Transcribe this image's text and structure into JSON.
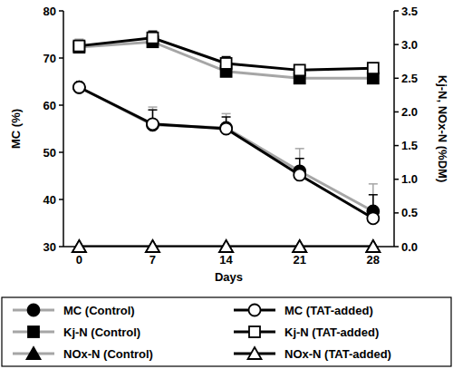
{
  "chart_data": {
    "type": "line",
    "x_label": "Days",
    "y_label": "MC (%)",
    "y2_label": "Kj-N, NOx-N (%DM)",
    "x": [
      0,
      7,
      14,
      21,
      28
    ],
    "xlim": [
      -1.5,
      30
    ],
    "xticks": [
      0,
      7,
      14,
      21,
      28
    ],
    "ylim": [
      30,
      80
    ],
    "yticks": [
      30,
      40,
      50,
      60,
      70,
      80
    ],
    "y2lim": [
      0,
      3.5
    ],
    "y2ticks": [
      {
        "value": 0,
        "label": "0.0"
      },
      0.5,
      {
        "value": 1,
        "label": "1.0"
      },
      1.5,
      {
        "value": 2,
        "label": "2.0"
      },
      2.5,
      {
        "value": 3,
        "label": "3.0"
      },
      3.5
    ],
    "legend": "bottom",
    "series": [
      {
        "name": "MC (Control)",
        "color": "#a6a6a6",
        "marker": "filled-circle",
        "values": [
          63.8,
          55.8,
          55.2,
          46.0,
          37.5
        ],
        "errors": [
          0.5,
          3.8,
          3.0,
          4.8,
          5.8
        ]
      },
      {
        "name": "MC (TAT-added)",
        "color": "#000000",
        "marker": "open-circle",
        "values": [
          63.8,
          56.0,
          55.0,
          45.2,
          36.0
        ],
        "errors": [
          0.5,
          3.0,
          2.5,
          3.5,
          5.0
        ]
      },
      {
        "name": "Kj-N (Control)",
        "color": "#a6a6a6",
        "marker": "filled-square",
        "axis": "y2",
        "values": [
          2.96,
          3.04,
          2.6,
          2.5,
          2.5
        ],
        "errors": [
          0.12,
          0.12,
          0.1,
          0.06,
          0.06
        ]
      },
      {
        "name": "Kj-N (TAT-added)",
        "color": "#000000",
        "marker": "open-square",
        "axis": "y2",
        "values": [
          2.98,
          3.1,
          2.72,
          2.62,
          2.65
        ],
        "errors": [
          0.08,
          0.1,
          0.1,
          0.05,
          0.05
        ]
      },
      {
        "name": "NOx-N (Control)",
        "color": "#a6a6a6",
        "marker": "filled-triangle",
        "axis": "y2",
        "values": [
          0,
          0,
          0,
          0,
          0
        ]
      },
      {
        "name": "NOx-N (TAT-added)",
        "color": "#000000",
        "marker": "open-triangle",
        "axis": "y2",
        "values": [
          0,
          0,
          0,
          0,
          0
        ]
      }
    ]
  }
}
